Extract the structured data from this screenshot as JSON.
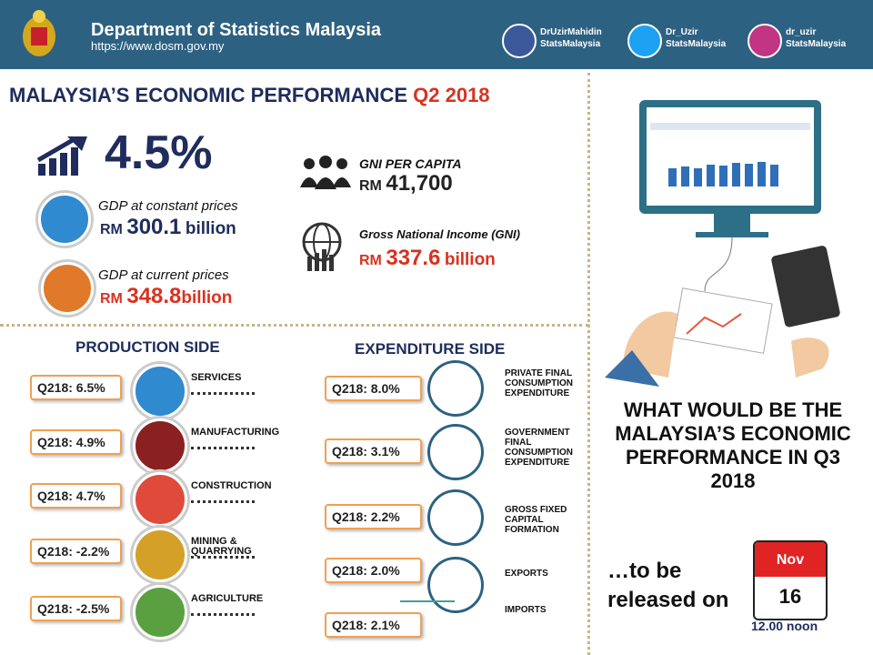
{
  "header": {
    "title": "Department of Statistics Malaysia",
    "url": "https://www.dosm.gov.my",
    "social": [
      {
        "line1": "DrUzirMahidin",
        "line2": "StatsMalaysia"
      },
      {
        "line1": "Dr_Uzir",
        "line2": "StatsMalaysia"
      },
      {
        "line1": "dr_uzir",
        "line2": "StatsMalaysia"
      }
    ]
  },
  "main": {
    "title": "MALAYSIA’S ECONOMIC PERFORMANCE",
    "period": "Q2 2018",
    "growth": "4.5%",
    "gdp_constant": {
      "label": "GDP at constant prices",
      "currency": "RM",
      "value": "300.1",
      "unit": "billion"
    },
    "gdp_current": {
      "label": "GDP at current prices",
      "currency": "RM",
      "value": "348.8",
      "unit": "billion"
    },
    "gni_per_capita": {
      "label": "GNI PER CAPITA",
      "currency": "RM",
      "value": "41,700"
    },
    "gni": {
      "label": "Gross National Income (GNI)",
      "currency": "RM",
      "value": "337.6",
      "unit": "billion"
    }
  },
  "production": {
    "title": "PRODUCTION SIDE",
    "items": [
      {
        "growth": "Q218: 6.5%",
        "label": "SERVICES"
      },
      {
        "growth": "Q218: 4.9%",
        "label": "MANUFACTURING"
      },
      {
        "growth": "Q218: 4.7%",
        "label": "CONSTRUCTION"
      },
      {
        "growth": "Q218: -2.2%",
        "label": "MINING & QUARRYING"
      },
      {
        "growth": "Q218: -2.5%",
        "label": "AGRICULTURE"
      }
    ]
  },
  "expenditure": {
    "title": "EXPENDITURE SIDE",
    "items": [
      {
        "growth": "Q218: 8.0%",
        "label": "PRIVATE FINAL CONSUMPTION EXPENDITURE"
      },
      {
        "growth": "Q218: 3.1%",
        "label": "GOVERNMENT FINAL CONSUMPTION EXPENDITURE"
      },
      {
        "growth": "Q218: 2.2%",
        "label": "GROSS FIXED CAPITAL FORMATION"
      },
      {
        "growth": "Q218: 2.0%",
        "label": "EXPORTS"
      },
      {
        "growth": "Q218: 2.1%",
        "label": "IMPORTS"
      }
    ]
  },
  "next_release": {
    "question": "WHAT WOULD BE THE MALAYSIA’S ECONOMIC PERFORMANCE IN Q3 2018",
    "lead": "…to be released on",
    "month": "Nov",
    "day": "16",
    "time": "12.00 noon"
  }
}
